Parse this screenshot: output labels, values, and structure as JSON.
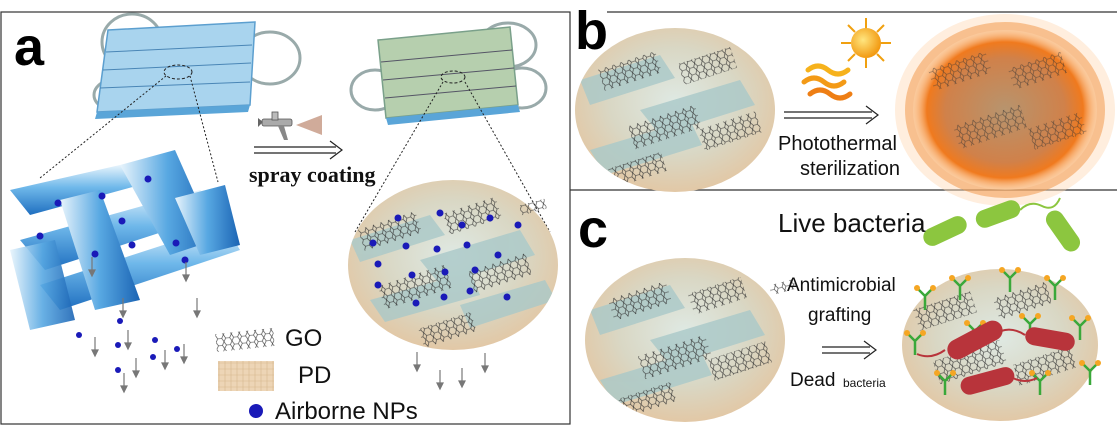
{
  "panels": {
    "a": {
      "letter": "a",
      "process_label": "spray coating",
      "legend": {
        "go": "GO",
        "pd": "PD",
        "nps": "Airborne NPs"
      }
    },
    "b": {
      "letter": "b",
      "process_label_line1": "Photothermal",
      "process_label_line2": "sterilization"
    },
    "c": {
      "letter": "c",
      "live_label": "Live bacteria",
      "process_label_line1": "Antimicrobial",
      "process_label_line2": "grafting",
      "dead_label": "Dead",
      "dead_sub": "bacteria"
    }
  },
  "colors": {
    "np_dot": "#1a1ab8",
    "fiber_blue": "#2f8fd8",
    "mask_blue": "#a9d4ee",
    "mask_green": "#b6cfae",
    "disk_tan": "#e6ceb0",
    "glow_orange": "#f07a1e",
    "bacteria_green": "#8cc63f",
    "bacteria_red": "#b8343b"
  }
}
